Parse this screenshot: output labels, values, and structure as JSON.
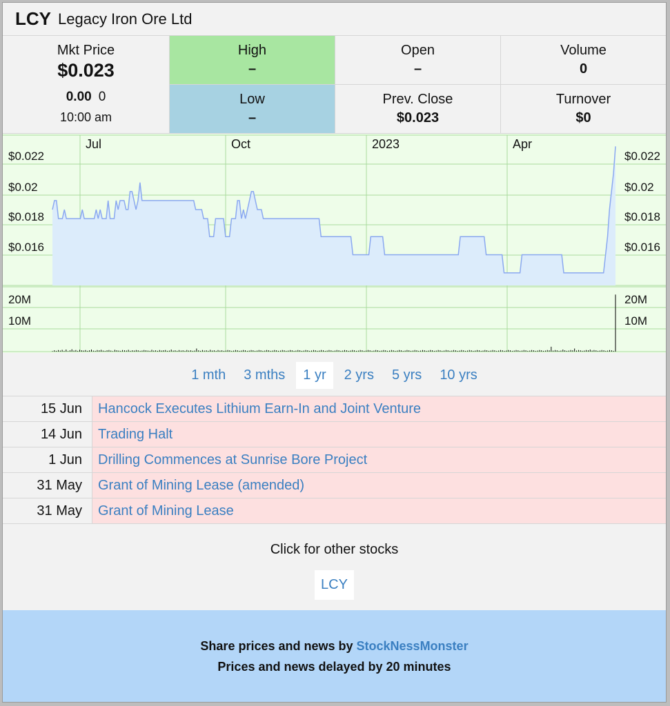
{
  "header": {
    "ticker": "LCY",
    "company": "Legacy Iron Ore Ltd"
  },
  "quote": {
    "mkt_label": "Mkt Price",
    "mkt_price": "$0.023",
    "change": "0.00",
    "change_pct": "0",
    "time": "10:00 am",
    "high_label": "High",
    "high_value": "–",
    "low_label": "Low",
    "low_value": "–",
    "open_label": "Open",
    "open_value": "–",
    "prev_label": "Prev. Close",
    "prev_value": "$0.023",
    "volume_label": "Volume",
    "volume_value": "0",
    "turnover_label": "Turnover",
    "turnover_value": "$0"
  },
  "chart_data": {
    "type": "line",
    "x_ticks": [
      "Jul",
      "Oct",
      "2023",
      "Apr"
    ],
    "y_ticks": [
      "$0.022",
      "$0.02",
      "$0.018",
      "$0.016"
    ],
    "ylim": [
      0.0148,
      0.0232
    ],
    "volume_ticks": [
      "20M",
      "10M"
    ],
    "volume_lim": [
      0,
      25
    ],
    "grid": true,
    "colors": {
      "line": "#8aa8f0",
      "fill": "#dcecfb",
      "bg": "#eefde9",
      "grid": "#a9dc9d",
      "volume": "#000000"
    },
    "price": [
      0.019,
      0.0195,
      0.0195,
      0.0185,
      0.0185,
      0.0185,
      0.019,
      0.0185,
      0.0185,
      0.0185,
      0.0185,
      0.0185,
      0.0185,
      0.0185,
      0.0185,
      0.019,
      0.0185,
      0.0185,
      0.0185,
      0.0185,
      0.0185,
      0.0185,
      0.019,
      0.0185,
      0.019,
      0.0185,
      0.0185,
      0.0185,
      0.0195,
      0.0185,
      0.0185,
      0.0185,
      0.0195,
      0.019,
      0.0195,
      0.0195,
      0.0195,
      0.019,
      0.019,
      0.02,
      0.02,
      0.0195,
      0.019,
      0.0195,
      0.0205,
      0.0195,
      0.0195,
      0.0195,
      0.0195,
      0.0195,
      0.0195,
      0.0195,
      0.0195,
      0.0195,
      0.0195,
      0.0195,
      0.0195,
      0.0195,
      0.0195,
      0.0195,
      0.0195,
      0.0195,
      0.0195,
      0.0195,
      0.0195,
      0.0195,
      0.0195,
      0.0195,
      0.0195,
      0.0195,
      0.0195,
      0.0195,
      0.019,
      0.019,
      0.019,
      0.019,
      0.0185,
      0.0185,
      0.0185,
      0.0175,
      0.0175,
      0.0175,
      0.0185,
      0.0185,
      0.0185,
      0.0185,
      0.0185,
      0.0175,
      0.0175,
      0.0175,
      0.0185,
      0.0185,
      0.0185,
      0.0195,
      0.0195,
      0.0185,
      0.019,
      0.0185,
      0.019,
      0.0195,
      0.02,
      0.02,
      0.0195,
      0.019,
      0.019,
      0.019,
      0.0185,
      0.0185,
      0.0185,
      0.0185,
      0.0185,
      0.0185,
      0.0185,
      0.0185,
      0.0185,
      0.0185,
      0.0185,
      0.0185,
      0.0185,
      0.0185,
      0.0185,
      0.0185,
      0.0185,
      0.0185,
      0.0185,
      0.0185,
      0.0185,
      0.0185,
      0.0185,
      0.0185,
      0.0185,
      0.0185,
      0.0185,
      0.0185,
      0.0185,
      0.0175,
      0.0175,
      0.0175,
      0.0175,
      0.0175,
      0.0175,
      0.0175,
      0.0175,
      0.0175,
      0.0175,
      0.0175,
      0.0175,
      0.0175,
      0.0175,
      0.0175,
      0.0175,
      0.0165,
      0.0165,
      0.0165,
      0.0165,
      0.0165,
      0.0165,
      0.0165,
      0.0165,
      0.0165,
      0.0175,
      0.0175,
      0.0175,
      0.0175,
      0.0175,
      0.0175,
      0.0175,
      0.0165,
      0.0165,
      0.0165,
      0.0165,
      0.0165,
      0.0165,
      0.0165,
      0.0165,
      0.0165,
      0.0165,
      0.0165,
      0.0165,
      0.0165,
      0.0165,
      0.0165,
      0.0165,
      0.0165,
      0.0165,
      0.0165,
      0.0165,
      0.0165,
      0.0165,
      0.0165,
      0.0165,
      0.0165,
      0.0165,
      0.0165,
      0.0165,
      0.0165,
      0.0165,
      0.0165,
      0.0165,
      0.0165,
      0.0165,
      0.0165,
      0.0165,
      0.0165,
      0.0165,
      0.0175,
      0.0175,
      0.0175,
      0.0175,
      0.0175,
      0.0175,
      0.0175,
      0.0175,
      0.0175,
      0.0175,
      0.0175,
      0.0175,
      0.0175,
      0.0165,
      0.0165,
      0.0165,
      0.0165,
      0.0165,
      0.0165,
      0.0165,
      0.0165,
      0.0165,
      0.0155,
      0.0155,
      0.0155,
      0.0155,
      0.0155,
      0.0155,
      0.0155,
      0.0155,
      0.0155,
      0.0165,
      0.0165,
      0.0165,
      0.0165,
      0.0165,
      0.0165,
      0.0165,
      0.0165,
      0.0165,
      0.0165,
      0.0165,
      0.0165,
      0.0165,
      0.0165,
      0.0165,
      0.0165,
      0.0165,
      0.0165,
      0.0165,
      0.0165,
      0.0165,
      0.0155,
      0.0155,
      0.0155,
      0.0155,
      0.0155,
      0.0155,
      0.0155,
      0.0155,
      0.0155,
      0.0155,
      0.0155,
      0.0155,
      0.0155,
      0.0155,
      0.0155,
      0.0155,
      0.0155,
      0.0155,
      0.0155,
      0.0155,
      0.0155,
      0.0165,
      0.0175,
      0.019,
      0.02,
      0.021,
      0.0225
    ],
    "volume": [
      0.2,
      0.5,
      0.3,
      0.6,
      0.4,
      0.7,
      0.3,
      0.8,
      0.2,
      0.5,
      0.9,
      0.4,
      0.6,
      0.3,
      0.7,
      0.5,
      0.4,
      0.6,
      0.3,
      0.5,
      0.8,
      0.4,
      0.3,
      0.6,
      0.5,
      0.7,
      0.4,
      0.3,
      0.5,
      0.6,
      0.4,
      0.2,
      0.7,
      0.5,
      0.4,
      0.3,
      0.6,
      0.5,
      0.4,
      0.7,
      0.3,
      0.5,
      0.4,
      0.6,
      0.5,
      0.3,
      0.4,
      0.6,
      0.5,
      0.4,
      0.3,
      0.7,
      0.4,
      0.5,
      0.3,
      0.6,
      0.4,
      0.5,
      0.6,
      0.3,
      0.4,
      0.8,
      0.4,
      0.5,
      0.3,
      0.6,
      0.4,
      0.5,
      0.3,
      0.6,
      0.4,
      0.5,
      0.3,
      0.4,
      1.2,
      0.5,
      0.3,
      0.6,
      0.4,
      0.5,
      0.3,
      0.7,
      0.4,
      0.5,
      0.3,
      0.6,
      0.4,
      0.5,
      0.3,
      0.4,
      0.6,
      0.5,
      0.3,
      0.4,
      0.6,
      0.5,
      0.3,
      0.4,
      0.6,
      0.5,
      0.3,
      0.4,
      0.6,
      0.5,
      0.3,
      0.4,
      0.6,
      0.5,
      0.3,
      0.4,
      0.6,
      0.5,
      0.3,
      0.4,
      0.6,
      0.5,
      0.3,
      0.4,
      0.6,
      0.5,
      0.3,
      0.4,
      0.6,
      0.5,
      0.3,
      0.4,
      0.6,
      0.5,
      0.3,
      0.4,
      0.6,
      0.5,
      0.3,
      0.4,
      0.6,
      0.5,
      0.3,
      0.4,
      0.6,
      0.5,
      0.3,
      0.4,
      0.6,
      0.5,
      0.3,
      0.4,
      0.6,
      0.5,
      0.3,
      0.4,
      0.6,
      0.5,
      0.3,
      0.4,
      0.6,
      0.5,
      0.3,
      0.4,
      0.6,
      0.5,
      0.3,
      0.4,
      0.6,
      0.5,
      0.3,
      0.4,
      0.6,
      0.5,
      0.3,
      0.4,
      0.6,
      0.5,
      0.3,
      0.4,
      0.6,
      0.5,
      0.3,
      0.4,
      0.6,
      0.5,
      0.3,
      0.4,
      0.6,
      0.5,
      0.3,
      0.4,
      0.6,
      0.5,
      0.3,
      0.4,
      0.6,
      0.5,
      0.3,
      0.4,
      0.6,
      0.5,
      0.3,
      0.4,
      0.6,
      0.5,
      0.3,
      0.4,
      0.6,
      0.5,
      0.3,
      0.4,
      0.6,
      0.5,
      0.3,
      0.4,
      0.6,
      0.5,
      0.3,
      0.4,
      0.6,
      0.5,
      0.3,
      0.4,
      0.6,
      0.5,
      0.3,
      0.4,
      0.6,
      0.5,
      0.3,
      0.4,
      0.6,
      0.5,
      0.3,
      0.4,
      0.6,
      0.5,
      0.3,
      0.4,
      0.6,
      0.5,
      0.3,
      0.4,
      0.6,
      0.5,
      0.3,
      0.4,
      0.6,
      0.5,
      0.3,
      0.4,
      0.6,
      0.5,
      0.3,
      0.4,
      0.6,
      0.5,
      0.3,
      0.4,
      0.6,
      0.5,
      1.9,
      0.4,
      0.6,
      0.5,
      0.3,
      0.4,
      0.8,
      0.5,
      0.3,
      0.4,
      0.6,
      0.5,
      1.2,
      0.4,
      0.6,
      0.5,
      0.3,
      0.4,
      0.6,
      0.5,
      0.8,
      0.4,
      0.6,
      0.5,
      0.3,
      0.4,
      0.6,
      0.5,
      0.3,
      0.4,
      0.6,
      0.5,
      0.3,
      22
    ]
  },
  "periods": [
    {
      "label": "1 mth",
      "active": false
    },
    {
      "label": "3 mths",
      "active": false
    },
    {
      "label": "1 yr",
      "active": true
    },
    {
      "label": "2 yrs",
      "active": false
    },
    {
      "label": "5 yrs",
      "active": false
    },
    {
      "label": "10 yrs",
      "active": false
    }
  ],
  "news": [
    {
      "date": "15 Jun",
      "title": "Hancock Executes Lithium Earn-In and Joint Venture"
    },
    {
      "date": "14 Jun",
      "title": "Trading Halt"
    },
    {
      "date": "1 Jun",
      "title": "Drilling Commences at Sunrise Bore Project"
    },
    {
      "date": "31 May",
      "title": "Grant of Mining Lease (amended)"
    },
    {
      "date": "31 May",
      "title": "Grant of Mining Lease"
    }
  ],
  "others": {
    "label": "Click for other stocks",
    "link": "LCY"
  },
  "footer": {
    "line1_prefix": "Share prices and news by ",
    "line1_link": "StockNessMonster",
    "line2": "Prices and news delayed by 20 minutes"
  }
}
